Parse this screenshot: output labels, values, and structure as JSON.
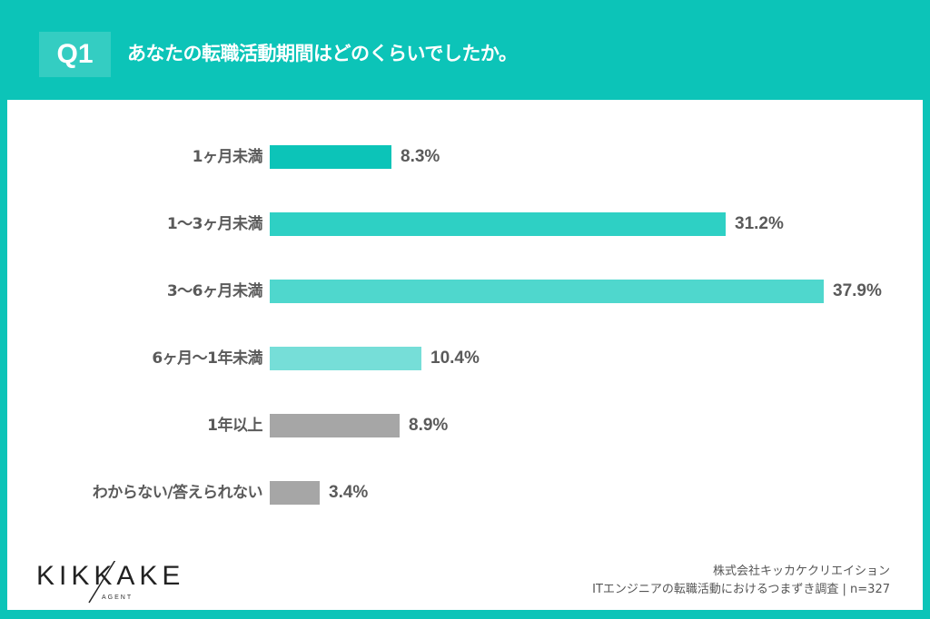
{
  "header": {
    "badge": "Q1",
    "title": "あなたの転職活動期間はどのくらいでしたか。"
  },
  "colors": {
    "background": "#0cc4b8",
    "badge": "#34cdc2",
    "text": "#5a5a5a"
  },
  "chart_data": {
    "type": "bar",
    "orientation": "horizontal",
    "title": "あなたの転職活動期間はどのくらいでしたか。",
    "categories": [
      "1ヶ月未満",
      "1〜3ヶ月未満",
      "3〜6ヶ月未満",
      "6ヶ月〜1年未満",
      "1年以上",
      "わからない/答えられない"
    ],
    "values": [
      8.3,
      31.2,
      37.9,
      10.4,
      8.9,
      3.4
    ],
    "labels": [
      "8.3%",
      "31.2%",
      "37.9%",
      "10.4%",
      "8.9%",
      "3.4%"
    ],
    "bar_colors": [
      "#0cc4b8",
      "#2ed0c4",
      "#4fd7cd",
      "#76ded8",
      "#a6a6a6",
      "#a6a6a6"
    ],
    "unit": "%",
    "xlabel": "",
    "ylabel": "",
    "grid": false,
    "legend": "none",
    "n": 327
  },
  "footer": {
    "logo": "KIKKAKE",
    "logo_sub": "AGENT",
    "company": "株式会社キッカケクリエイション",
    "survey": "ITエンジニアの転職活動におけるつまずき調査 | n=327"
  }
}
